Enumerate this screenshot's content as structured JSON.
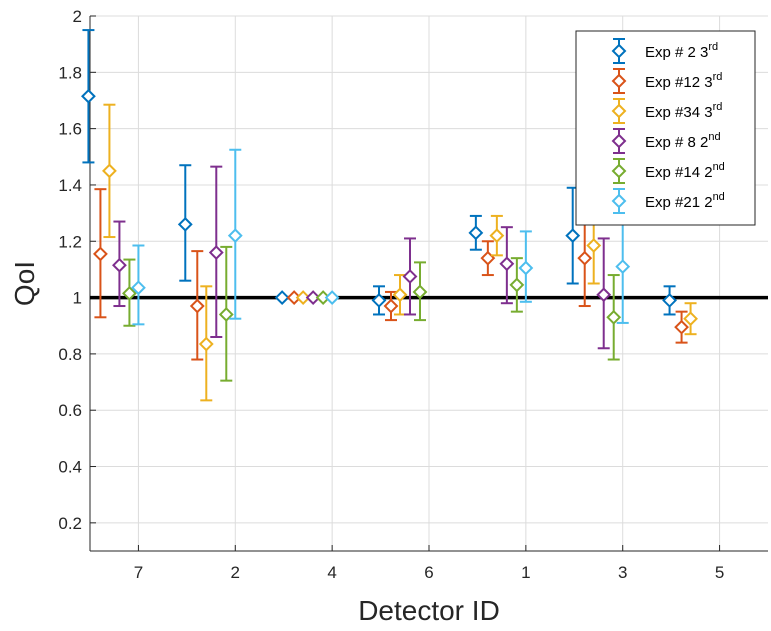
{
  "chart_data": {
    "type": "scatter",
    "title": "",
    "xlabel": "Detector ID",
    "ylabel": "QoI",
    "categories": [
      "7",
      "2",
      "4",
      "6",
      "1",
      "3",
      "5"
    ],
    "ylim": [
      0.1,
      2
    ],
    "yticks": [
      "0.2",
      "0.4",
      "0.6",
      "0.8",
      "1",
      "1.2",
      "1.4",
      "1.6",
      "1.8",
      "2"
    ],
    "grid": true,
    "legend_position": "top-right",
    "reference_line": 1,
    "colors": [
      "#0072BD",
      "#D95319",
      "#EDB120",
      "#7E2F8E",
      "#77AC30",
      "#4DBEEE"
    ],
    "series": [
      {
        "name": "Exp # 2 3",
        "name_sup": "rd",
        "values": [
          1.715,
          1.26,
          1.0,
          0.99,
          1.23,
          1.22,
          0.99
        ],
        "lower": [
          1.48,
          1.06,
          1.0,
          0.94,
          1.17,
          1.05,
          0.94
        ],
        "upper": [
          1.95,
          1.47,
          1.0,
          1.04,
          1.29,
          1.39,
          1.04
        ]
      },
      {
        "name": "Exp #12 3",
        "name_sup": "rd",
        "values": [
          1.155,
          0.97,
          1.0,
          0.97,
          1.14,
          1.14,
          0.895
        ],
        "lower": [
          0.93,
          0.78,
          1.0,
          0.92,
          1.08,
          0.97,
          0.84
        ],
        "upper": [
          1.385,
          1.165,
          1.0,
          1.02,
          1.2,
          1.31,
          0.95
        ]
      },
      {
        "name": "Exp #34 3",
        "name_sup": "rd",
        "values": [
          1.45,
          0.835,
          1.0,
          1.01,
          1.22,
          1.185,
          0.925
        ],
        "lower": [
          1.215,
          0.635,
          1.0,
          0.94,
          1.15,
          1.05,
          0.87
        ],
        "upper": [
          1.685,
          1.04,
          1.0,
          1.08,
          1.29,
          1.32,
          0.98
        ]
      },
      {
        "name": "Exp # 8 2",
        "name_sup": "nd",
        "values": [
          1.115,
          1.16,
          1.0,
          1.075,
          1.12,
          1.01,
          null
        ],
        "lower": [
          0.97,
          0.86,
          1.0,
          0.94,
          0.98,
          0.82,
          null
        ],
        "upper": [
          1.27,
          1.465,
          1.0,
          1.21,
          1.25,
          1.21,
          null
        ]
      },
      {
        "name": "Exp #14 2",
        "name_sup": "nd",
        "values": [
          1.015,
          0.94,
          1.0,
          1.02,
          1.045,
          0.93,
          null
        ],
        "lower": [
          0.9,
          0.705,
          1.0,
          0.92,
          0.95,
          0.78,
          null
        ],
        "upper": [
          1.135,
          1.18,
          1.0,
          1.125,
          1.14,
          1.08,
          null
        ]
      },
      {
        "name": "Exp #21 2",
        "name_sup": "nd",
        "values": [
          1.035,
          1.22,
          1.0,
          null,
          1.105,
          1.11,
          null
        ],
        "lower": [
          0.905,
          0.925,
          1.0,
          null,
          0.985,
          0.91,
          null
        ],
        "upper": [
          1.185,
          1.525,
          1.0,
          null,
          1.235,
          1.37,
          null
        ]
      }
    ]
  }
}
